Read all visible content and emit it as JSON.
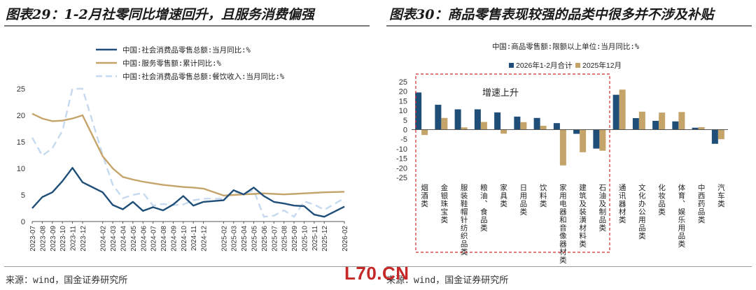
{
  "titles": {
    "left": "图表29：1-2月社零同比增速回升，且服务消费偏强",
    "right": "图表30：商品零售表现较强的品类中很多并不涉及补贴"
  },
  "sources": {
    "left": "来源：wind，国金证券研究所",
    "right": "来源：wind，国金证券研究所"
  },
  "watermark": "L70.CN",
  "colors": {
    "navy": "#1f4e79",
    "gold": "#c5a46a",
    "lightblue": "#c5d9ef",
    "box": "#d12b2b"
  },
  "chart_data": [
    {
      "type": "line",
      "x": [
        "2023-07",
        "2023-08",
        "2023-09",
        "2023-10",
        "2023-11",
        "2023-12",
        "2024-01",
        "2024-02",
        "2024-03",
        "2024-04",
        "2024-05",
        "2024-06",
        "2024-07",
        "2024-08",
        "2024-09",
        "2024-10",
        "2024-11",
        "2024-12",
        "2025-01",
        "2025-02",
        "2025-03",
        "2025-04",
        "2025-05",
        "2025-06",
        "2025-07",
        "2025-08",
        "2025-09",
        "2025-10",
        "2025-11",
        "2025-12",
        "2026-01",
        "2026-02"
      ],
      "x_tick_labels": [
        "2023-07",
        "2023-08",
        "2023-09",
        "2023-10",
        "2023-11",
        "2023-12",
        "2024-02",
        "2024-03",
        "2024-04",
        "2024-05",
        "2024-06",
        "2024-07",
        "2024-08",
        "2024-09",
        "2024-10",
        "2024-11",
        "2024-12",
        "2025-02",
        "2025-03",
        "2025-04",
        "2025-05",
        "2025-06",
        "2025-07",
        "2025-08",
        "2025-09",
        "2025-10",
        "2025-11",
        "2025-12",
        "2026-02"
      ],
      "series": [
        {
          "name": "中国:社会消费品零售总额:当月同比:%",
          "style": "solid-navy",
          "values": [
            2.5,
            4.6,
            5.5,
            7.6,
            10.1,
            7.4,
            null,
            5.5,
            3.1,
            2.3,
            3.7,
            2.0,
            2.7,
            2.1,
            3.2,
            4.8,
            3.0,
            3.7,
            null,
            4.0,
            5.9,
            5.1,
            6.4,
            4.8,
            3.7,
            3.4,
            3.0,
            2.9,
            1.3,
            0.9,
            null,
            2.8
          ]
        },
        {
          "name": "中国:服务零售额:累计同比:%",
          "style": "solid-gold",
          "values": [
            20.3,
            19.4,
            18.9,
            19.0,
            19.4,
            20.0,
            null,
            12.3,
            10.0,
            8.4,
            7.9,
            7.5,
            7.2,
            6.9,
            6.7,
            6.5,
            6.4,
            6.2,
            null,
            4.9,
            5.0,
            5.1,
            5.2,
            5.3,
            5.2,
            5.1,
            5.2,
            5.3,
            5.4,
            5.5,
            null,
            5.6
          ]
        },
        {
          "name": "中国:社会消费品零售总额:餐饮收入:当月同比:%",
          "style": "dashed-lightblue",
          "values": [
            15.8,
            12.4,
            13.8,
            17.1,
            25.8,
            30.0,
            null,
            12.5,
            6.9,
            4.4,
            5.0,
            5.4,
            3.0,
            3.3,
            3.1,
            3.2,
            4.0,
            4.3,
            null,
            4.3,
            5.6,
            5.2,
            5.9,
            0.9,
            1.1,
            2.1,
            0.9,
            3.8,
            3.2,
            2.2,
            null,
            4.4
          ]
        }
      ],
      "ylim": [
        0,
        25
      ],
      "yticks": [
        0,
        5,
        10,
        15,
        20,
        25
      ],
      "legend": "top-center"
    },
    {
      "type": "bar",
      "title": "中国:商品零售额:限额以上单位:当月同比:%",
      "categories": [
        "烟酒类",
        "金银珠宝类",
        "服装鞋帽针纺织品类",
        "粮油、食品类",
        "家具类",
        "日用品类",
        "饮料类",
        "家用电器和音像器材类",
        "建筑及装潢材料类",
        "石油及制品类",
        "通讯器材类",
        "文化办公用品类",
        "化妆品类",
        "体育、娱乐用品类",
        "中西药品类",
        "汽车类"
      ],
      "series": [
        {
          "name": "2026年1-2月合计",
          "values": [
            19.4,
            13.0,
            10.6,
            10.6,
            9.0,
            6.8,
            6.1,
            3.4,
            -2.2,
            -9.9,
            18.2,
            6.0,
            4.6,
            4.3,
            1.0,
            -7.4
          ]
        },
        {
          "name": "2025年12月",
          "values": [
            -2.8,
            6.1,
            1.2,
            4.0,
            -2.1,
            3.9,
            2.0,
            -18.7,
            -11.8,
            -11.0,
            20.9,
            9.4,
            8.9,
            9.2,
            1.3,
            -5.0
          ]
        }
      ],
      "ylim": [
        -25,
        25
      ],
      "yticks": [
        25,
        20,
        15,
        10,
        5,
        0,
        -5,
        -10,
        -15,
        -20,
        -25
      ],
      "annotation": "增速上升",
      "legend": "top-center"
    }
  ]
}
